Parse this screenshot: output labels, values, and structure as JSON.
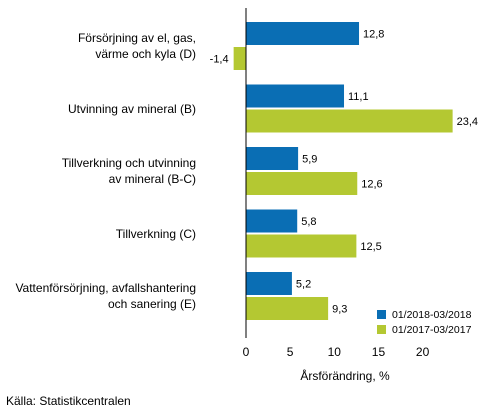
{
  "chart_data": {
    "type": "bar",
    "orientation": "horizontal",
    "categories": [
      "Försörjning av el, gas,\nvärme och kyla (D)",
      "Utvinning av mineral (B)",
      "Tillverkning och utvinning\nav mineral (B-C)",
      "Tillverkning (C)",
      "Vattenförsörjning, avfallshantering\noch sanering (E)"
    ],
    "series": [
      {
        "name": "01/2018-03/2018",
        "color": "#0a6eb4",
        "values": [
          12.8,
          11.1,
          5.9,
          5.8,
          5.2
        ],
        "labels": [
          "12,8",
          "11,1",
          "5,9",
          "5,8",
          "5,2"
        ]
      },
      {
        "name": "01/2017-03/2017",
        "color": "#b4c832",
        "values": [
          -1.4,
          23.4,
          12.6,
          12.5,
          9.3
        ],
        "labels": [
          "-1,4",
          "23,4",
          "12,6",
          "12,5",
          "9,3"
        ]
      }
    ],
    "xlabel": "Årsförändring, %",
    "xlim": [
      -5,
      25
    ],
    "xticks": [
      0,
      5,
      10,
      15,
      20
    ],
    "grid": false,
    "legend_position": "bottom-right"
  },
  "source": "Källa: Statistikcentralen"
}
